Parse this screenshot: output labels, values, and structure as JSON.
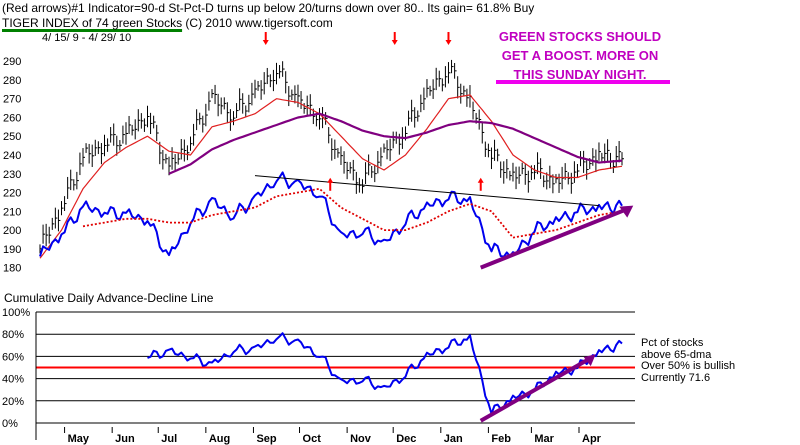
{
  "header": {
    "line1": "(Red arrows)#1 Indicator=90-d St-Pct-D turns up below 20/turns down over 80.. Its gain= 61.8% Buy",
    "line2_title": "TIGER INDEX of  74 green Stocks",
    "line2_rest": "  (C) 2010    www.tigersoft.com",
    "date_range": "4/ 15/ 9 -  4/ 29/ 10"
  },
  "annotation": {
    "text": "GREEN STOCKS SHOULD GET A BOOST.  MORE ON THIS SUNDAY NIGHT.",
    "color": "#c000c0"
  },
  "subplot_title": "Cumulative Daily Advance-Decline Line",
  "legend": {
    "line1": "Pct of stocks",
    "line2": "above 65-dma",
    "line3": "Over 50% is bullish",
    "line4": "Currently  71.6"
  },
  "colors": {
    "price_bars": "#000000",
    "ma_short": "#e02020",
    "ma_long": "#800080",
    "ad_line": "#0000ee",
    "ad_ma": "#e00000",
    "pct_line": "#0000ee",
    "fifty_line": "#ff0000",
    "trend_arrow": "#800080",
    "signal_arrow": "#ff0000"
  },
  "chart_data": [
    {
      "type": "line",
      "subtype": "ohlc-price-bars-with-moving-averages",
      "title": "TIGER INDEX of  74 green Stocks",
      "y_ticks": [
        180,
        190,
        200,
        210,
        220,
        230,
        240,
        250,
        260,
        270,
        280,
        290
      ],
      "ylim": [
        175,
        297
      ],
      "x_month_labels": [
        "May",
        "Jun",
        "Jul",
        "Aug",
        "Sep",
        "Oct",
        "Nov",
        "Dec",
        "Jan",
        "Feb",
        "Mar",
        "Apr"
      ],
      "x_dates": [
        "2009-04-15",
        "2009-04-29",
        "2009-05-13",
        "2009-05-27",
        "2009-06-10",
        "2009-06-24",
        "2009-07-08",
        "2009-07-22",
        "2009-08-05",
        "2009-08-19",
        "2009-09-02",
        "2009-09-16",
        "2009-09-30",
        "2009-10-14",
        "2009-10-28",
        "2009-11-11",
        "2009-11-25",
        "2009-12-09",
        "2009-12-23",
        "2010-01-06",
        "2010-01-20",
        "2010-02-03",
        "2010-02-17",
        "2010-03-03",
        "2010-03-17",
        "2010-03-31",
        "2010-04-14",
        "2010-04-29"
      ],
      "series": [
        {
          "name": "",
          "role": "price-close",
          "values": [
            190,
            212,
            238,
            246,
            250,
            262,
            232,
            248,
            270,
            262,
            272,
            286,
            268,
            262,
            236,
            226,
            240,
            254,
            272,
            286,
            268,
            240,
            228,
            232,
            225,
            232,
            240,
            238
          ]
        },
        {
          "name": "",
          "role": "short-ma",
          "values": [
            185,
            200,
            222,
            236,
            244,
            250,
            242,
            240,
            255,
            258,
            262,
            270,
            268,
            262,
            250,
            238,
            232,
            240,
            254,
            270,
            272,
            258,
            240,
            232,
            228,
            228,
            232,
            234
          ]
        },
        {
          "name": "",
          "role": "long-ma",
          "values": [
            null,
            null,
            null,
            null,
            null,
            null,
            230,
            235,
            243,
            248,
            252,
            256,
            260,
            262,
            258,
            253,
            250,
            249,
            252,
            256,
            258,
            257,
            254,
            249,
            244,
            239,
            236,
            237
          ]
        },
        {
          "name": "",
          "role": "ad-line",
          "values": [
            186,
            198,
            212,
            210,
            208,
            206,
            185,
            205,
            215,
            208,
            216,
            228,
            224,
            220,
            196,
            200,
            192,
            205,
            212,
            218,
            215,
            190,
            186,
            200,
            205,
            210,
            212,
            213
          ]
        },
        {
          "name": "",
          "role": "ad-line-ma",
          "values": [
            null,
            null,
            202,
            204,
            206,
            206,
            204,
            204,
            208,
            210,
            212,
            218,
            220,
            222,
            212,
            206,
            200,
            200,
            204,
            210,
            214,
            210,
            196,
            198,
            200,
            204,
            208,
            210
          ]
        }
      ],
      "trendline": {
        "from": [
          "2009-09-02",
          229
        ],
        "to": [
          "2010-04-14",
          213
        ]
      },
      "red_arrows_down": [
        "2009-09-09",
        "2009-12-02",
        "2010-01-06"
      ],
      "red_arrows_up": [
        "2009-10-21",
        "2010-01-27"
      ]
    },
    {
      "type": "line",
      "title": "Cumulative Daily Advance-Decline Line",
      "y_ticks": [
        "0%",
        "20%",
        "40%",
        "60%",
        "80%",
        "100%"
      ],
      "ylim": [
        0,
        100
      ],
      "x_month_labels": [
        "May",
        "Jun",
        "Jul",
        "Aug",
        "Sep",
        "Oct",
        "Nov",
        "Dec",
        "Jan",
        "Feb",
        "Mar",
        "Apr"
      ],
      "series": [
        {
          "name": "",
          "role": "pct-above-65-dma",
          "values": [
            null,
            null,
            null,
            null,
            null,
            60,
            64,
            60,
            52,
            66,
            66,
            78,
            72,
            62,
            36,
            40,
            30,
            44,
            60,
            70,
            76,
            10,
            22,
            30,
            44,
            50,
            64,
            71.6
          ]
        }
      ],
      "reference_line": 50,
      "current_value": 71.6
    }
  ]
}
